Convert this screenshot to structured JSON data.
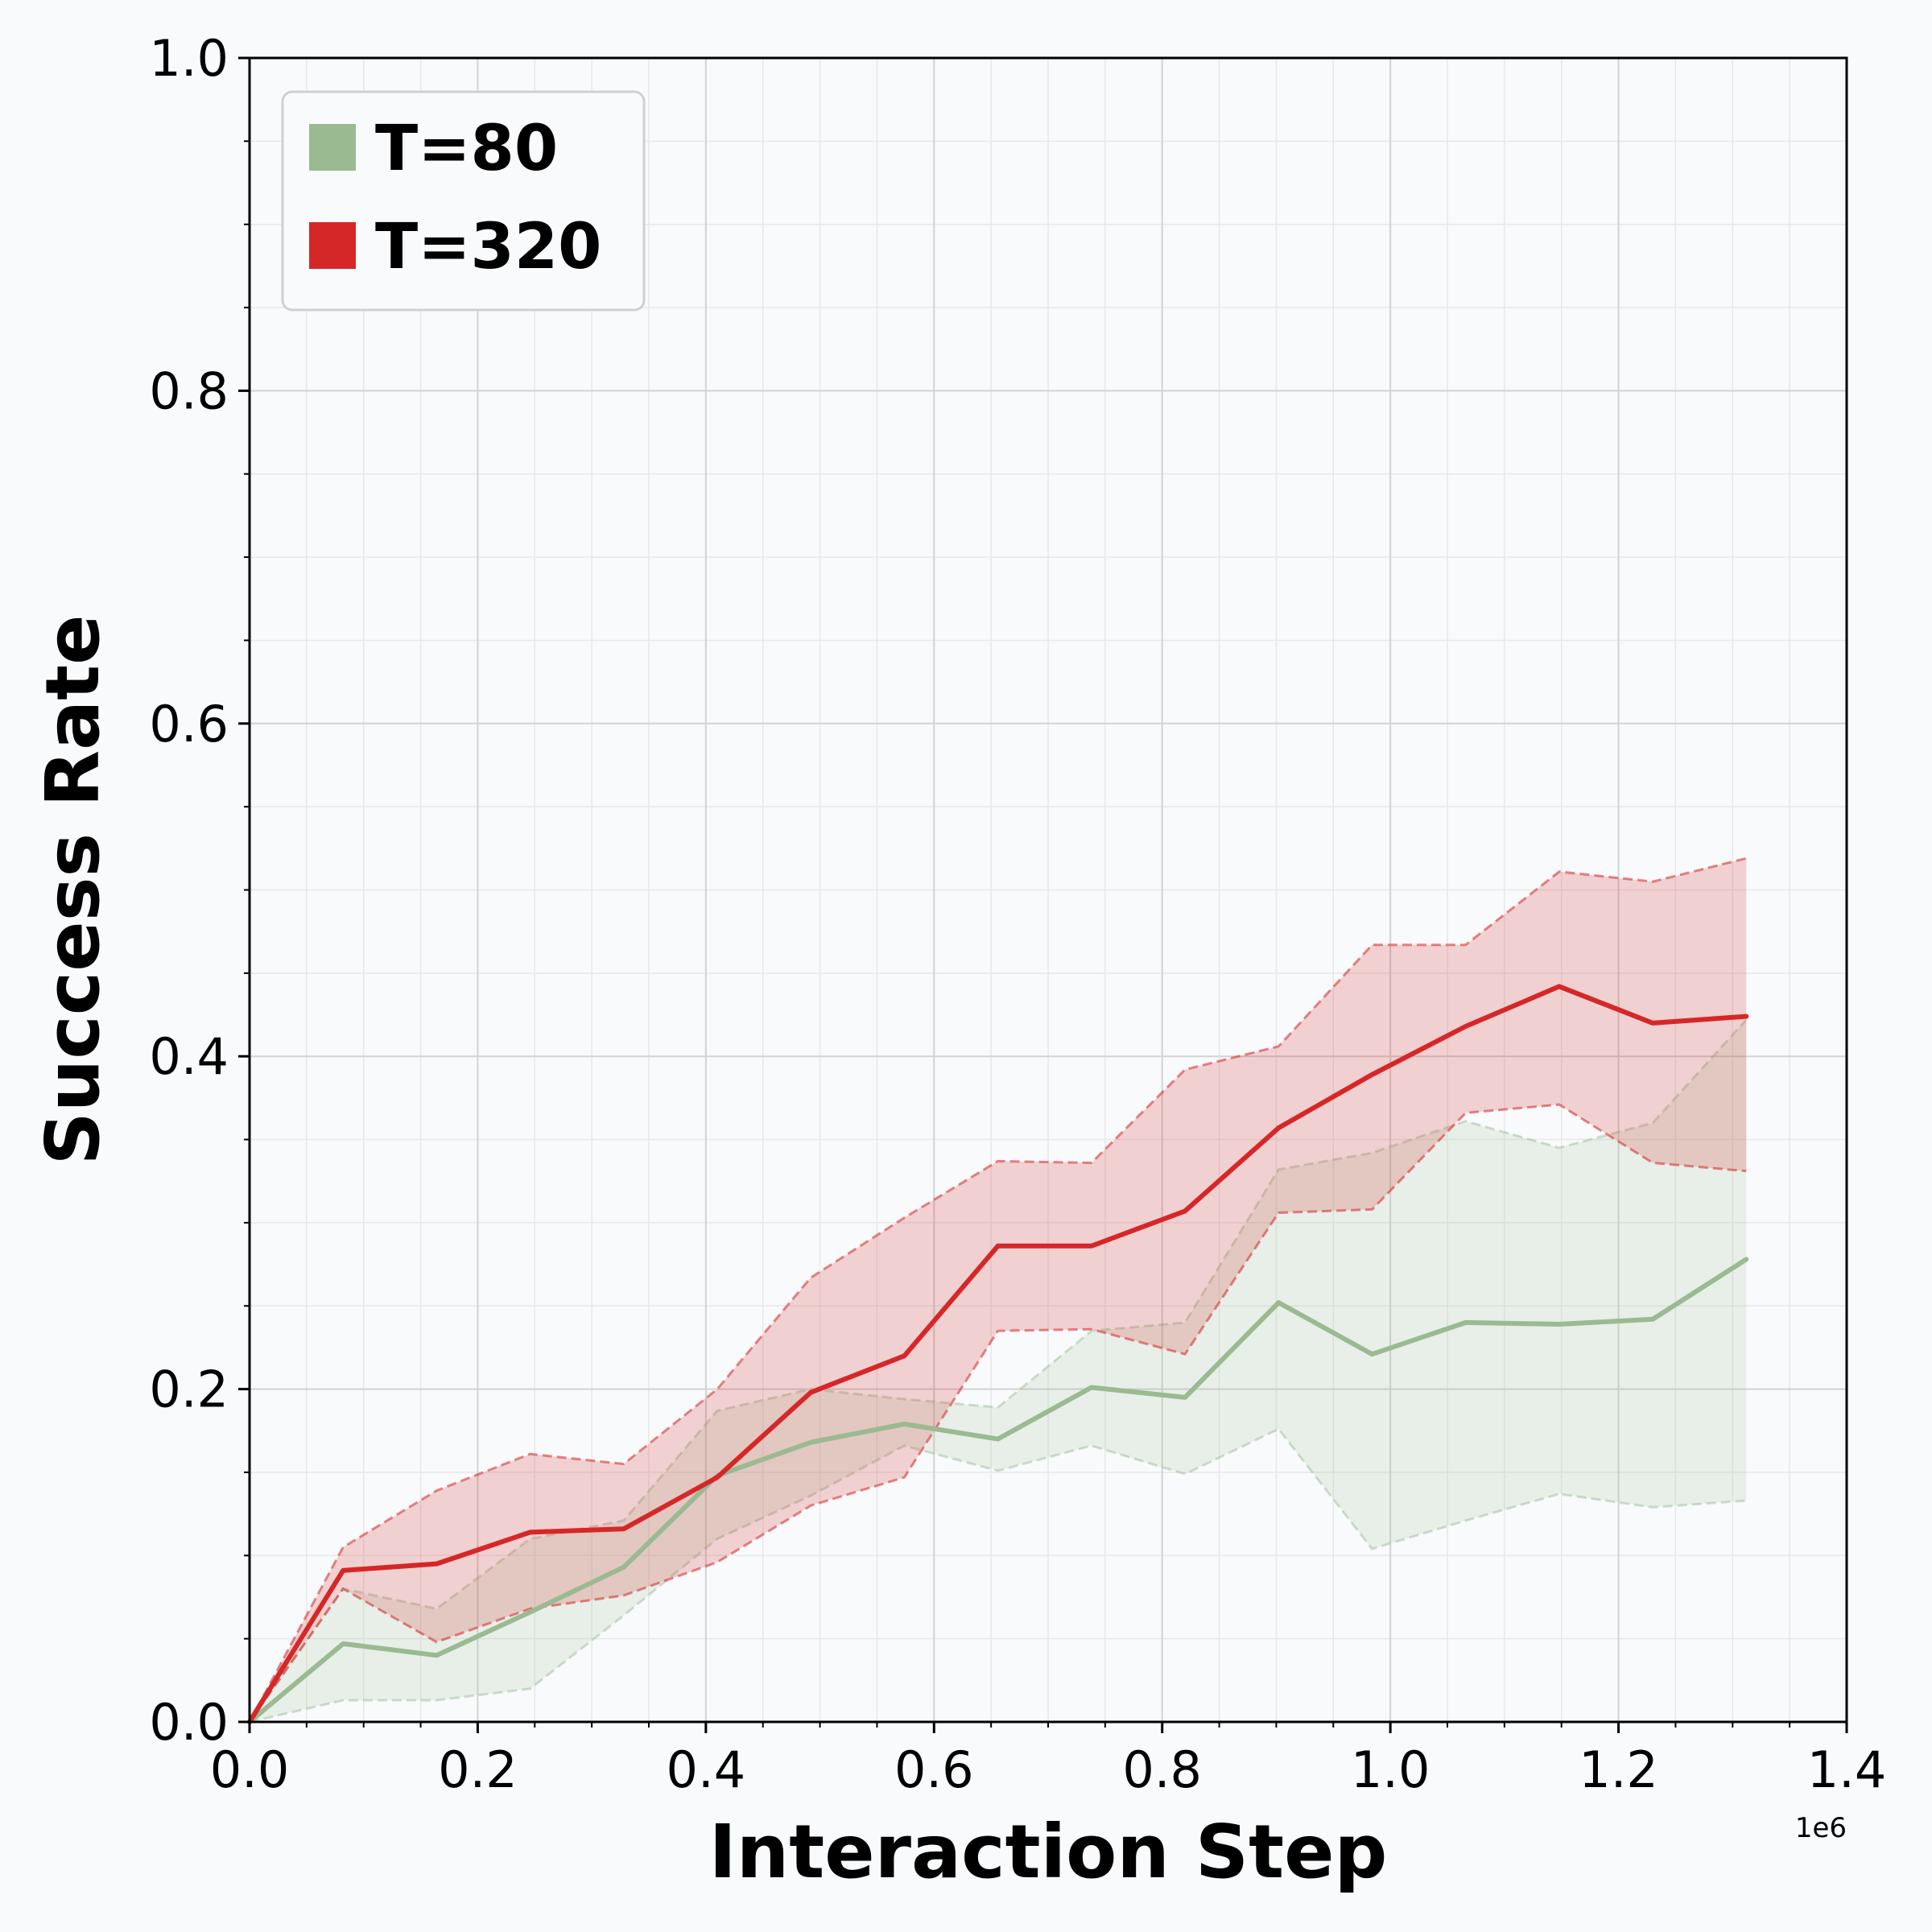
{
  "chart_data": {
    "type": "line",
    "title": "",
    "xlabel": "Interaction Step",
    "ylabel": "Success Rate",
    "x_offset_label": "1e6",
    "xlim": [
      0,
      1.4
    ],
    "ylim": [
      0,
      1.0
    ],
    "xticks": [
      0.0,
      0.2,
      0.4,
      0.6,
      0.8,
      1.0,
      1.2,
      1.4
    ],
    "xtick_labels": [
      "0.0",
      "0.2",
      "0.4",
      "0.6",
      "0.8",
      "1.0",
      "1.2",
      "1.4"
    ],
    "yticks": [
      0.0,
      0.2,
      0.4,
      0.6,
      0.8,
      1.0
    ],
    "ytick_labels": [
      "0.0",
      "0.2",
      "0.4",
      "0.6",
      "0.8",
      "1.0"
    ],
    "grid": true,
    "legend_position": "top-left",
    "x": [
      0.0,
      0.082,
      0.164,
      0.246,
      0.328,
      0.41,
      0.492,
      0.574,
      0.656,
      0.738,
      0.82,
      0.902,
      0.984,
      1.066,
      1.148,
      1.23,
      1.312
    ],
    "series": [
      {
        "name": "T=80",
        "color": "#9aba92",
        "values": [
          0.0,
          0.047,
          0.04,
          0.066,
          0.093,
          0.148,
          0.168,
          0.179,
          0.17,
          0.201,
          0.195,
          0.252,
          0.221,
          0.24,
          0.239,
          0.242,
          0.278
        ],
        "lower": [
          0.0,
          0.013,
          0.013,
          0.02,
          0.064,
          0.11,
          0.136,
          0.166,
          0.151,
          0.166,
          0.149,
          0.176,
          0.104,
          0.121,
          0.137,
          0.129,
          0.133
        ],
        "upper": [
          0.0,
          0.08,
          0.068,
          0.11,
          0.121,
          0.187,
          0.2,
          0.194,
          0.189,
          0.235,
          0.24,
          0.332,
          0.342,
          0.361,
          0.345,
          0.36,
          0.422
        ]
      },
      {
        "name": "T=320",
        "color": "#d62728",
        "values": [
          0.0,
          0.091,
          0.095,
          0.114,
          0.116,
          0.147,
          0.198,
          0.22,
          0.286,
          0.286,
          0.307,
          0.357,
          0.389,
          0.418,
          0.442,
          0.42,
          0.424
        ],
        "lower": [
          0.0,
          0.08,
          0.048,
          0.068,
          0.076,
          0.096,
          0.13,
          0.147,
          0.235,
          0.236,
          0.221,
          0.306,
          0.308,
          0.366,
          0.371,
          0.336,
          0.331
        ],
        "upper": [
          0.0,
          0.105,
          0.139,
          0.161,
          0.155,
          0.2,
          0.267,
          0.303,
          0.337,
          0.336,
          0.392,
          0.406,
          0.467,
          0.467,
          0.511,
          0.505,
          0.519
        ]
      }
    ]
  }
}
